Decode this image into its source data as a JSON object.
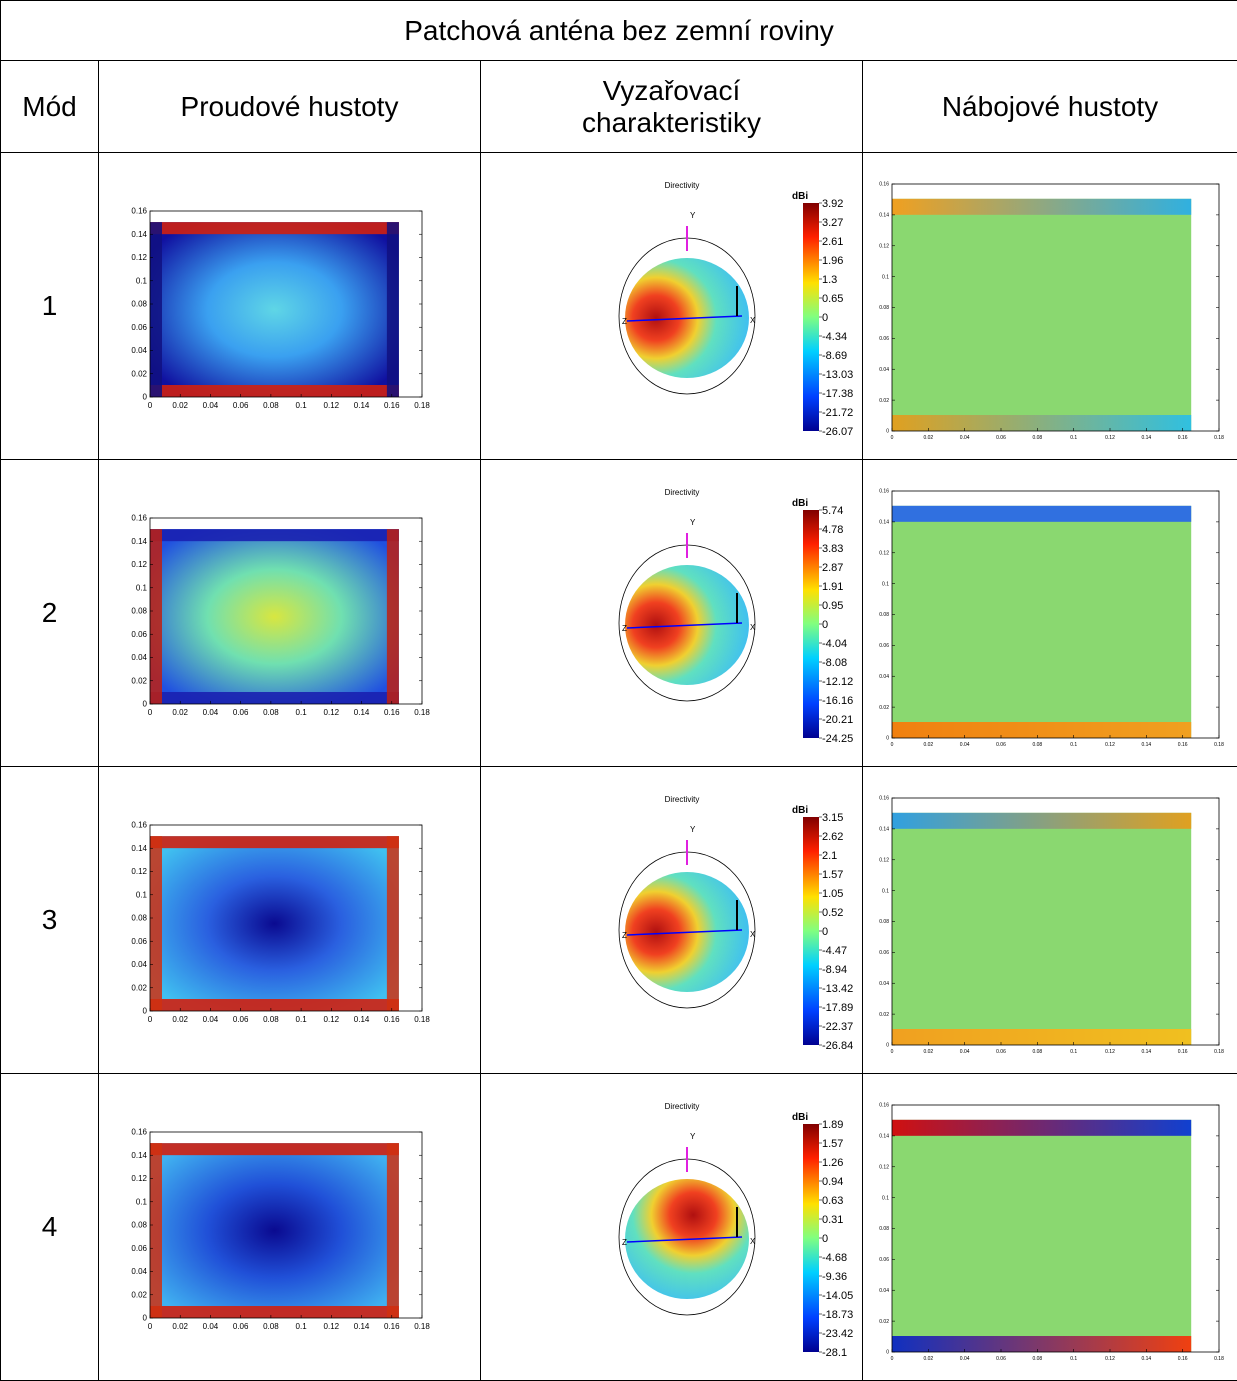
{
  "table": {
    "title": "Patchová anténa bez zemní roviny",
    "headers": [
      "Mód",
      "Proudové hustoty",
      "Vyzařovací charakteristiky",
      "Nábojové hustoty"
    ],
    "rows": [
      {
        "mode": "1",
        "colorbar": [
          3.92,
          3.27,
          2.61,
          1.96,
          1.3,
          0.65,
          0,
          -4.34,
          -8.69,
          -13.03,
          -17.38,
          -21.72,
          -26.07
        ]
      },
      {
        "mode": "2",
        "colorbar": [
          5.74,
          4.78,
          3.83,
          2.87,
          1.91,
          0.95,
          0,
          -4.04,
          -8.08,
          -12.12,
          -16.16,
          -20.21,
          -24.25
        ]
      },
      {
        "mode": "3",
        "colorbar": [
          3.15,
          2.62,
          2.1,
          1.57,
          1.05,
          0.52,
          0,
          -4.47,
          -8.94,
          -13.42,
          -17.89,
          -22.37,
          -26.84
        ]
      },
      {
        "mode": "4",
        "colorbar": [
          1.89,
          1.57,
          1.26,
          0.94,
          0.63,
          0.31,
          0,
          -4.68,
          -9.36,
          -14.05,
          -18.73,
          -23.42,
          -28.1
        ]
      }
    ]
  },
  "plot": {
    "xlim": [
      0,
      0.18
    ],
    "ylim": [
      0,
      0.16
    ],
    "xticks": [
      0,
      0.02,
      0.04,
      0.06,
      0.08,
      0.1,
      0.12,
      0.14,
      0.16,
      0.18
    ],
    "yticks": [
      0,
      0.02,
      0.04,
      0.06,
      0.08,
      0.1,
      0.12,
      0.14,
      0.16
    ]
  },
  "directivity": {
    "title": "Directivity",
    "unit": "dBi",
    "axes": [
      "X",
      "Y",
      "Z"
    ]
  }
}
